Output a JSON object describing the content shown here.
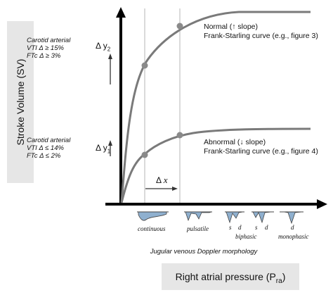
{
  "y_axis_label": "Stroke Volume (SV)",
  "x_axis_label": {
    "text": "Right atrial pressure (P",
    "subscript": "ra",
    "suffix": ")"
  },
  "upper_note": {
    "line1": "Carotid arterial",
    "line2": "VTI Δ ≥ 15%",
    "line3": "FTc Δ ≥ 3%"
  },
  "lower_note": {
    "line1": "Carotid arterial",
    "line2": "VTI Δ ≤ 14%",
    "line3": "FTc Δ ≤ 2%"
  },
  "normal_curve": {
    "line1": "Normal (↑ slope)",
    "line2": "Frank-Starling curve (e.g., figure 3)"
  },
  "abnormal_curve": {
    "line1": "Abnormal (↓ slope)",
    "line2": "Frank-Starling curve (e.g., figure 4)"
  },
  "delta_y2": {
    "text": "Δ y",
    "sub": "2"
  },
  "delta_y1": {
    "text": "Δ y",
    "sub": "1"
  },
  "delta_x": {
    "text": "Δ ",
    "var": "x"
  },
  "morphology": {
    "continuous": "continuous",
    "pulsatile": "pulsatile",
    "biphasic": "biphasic",
    "monophasic": "monophasic",
    "s": "s",
    "d": "d"
  },
  "morphology_caption": "Jugular venous Doppler morphology",
  "colors": {
    "curve": "#7a7a7a",
    "axis": "#000000",
    "label_box": "#e6e6e6",
    "doppler_fill": "#8fb0cf",
    "doppler_edge": "#444444"
  }
}
